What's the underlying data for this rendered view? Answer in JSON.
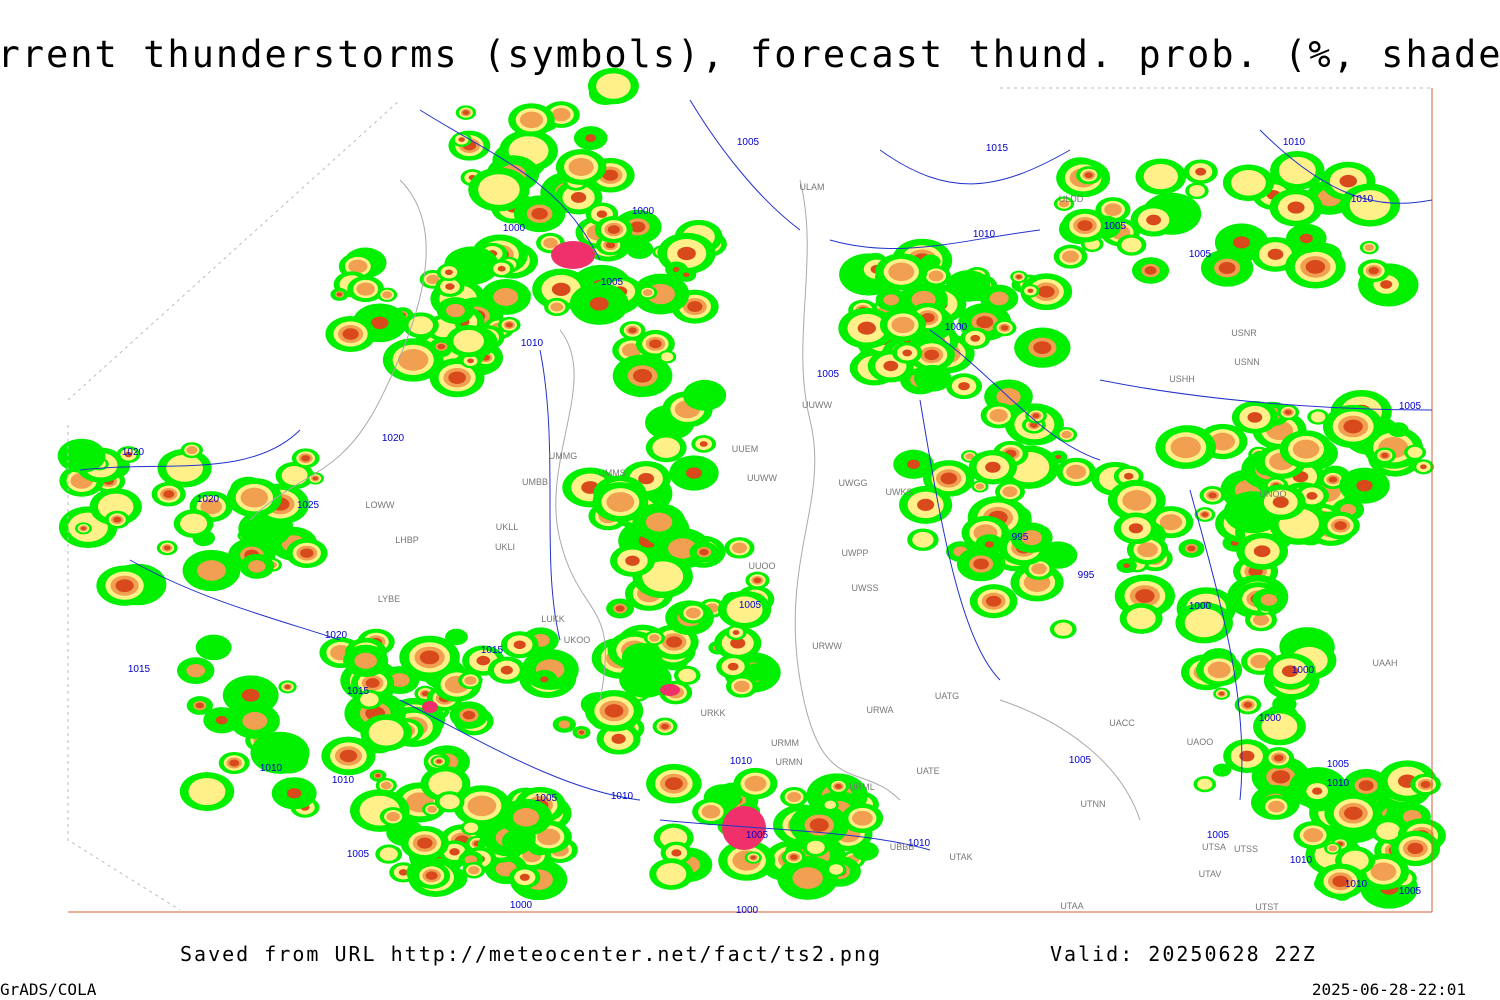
{
  "title": "Current thunderstorms (symbols), forecast thund. prob. (%, shaded)",
  "footer": {
    "source": "Saved from URL http://meteocenter.net/fact/ts2.png",
    "valid": "Valid: 20250628 22Z",
    "software": "GrADS/COLA",
    "timestamp": "2025-06-28-22:01"
  },
  "isobar_labels": [
    1005,
    1015,
    1000,
    1000,
    1010,
    1005,
    1005,
    1010,
    1000,
    1005,
    1020,
    1020,
    1020,
    1025,
    995,
    995,
    1005,
    1000,
    1020,
    1015,
    1015,
    1015,
    1000,
    1000,
    1010,
    1010,
    1010,
    1005,
    1010,
    1005,
    1005,
    1010,
    1010,
    1005,
    1005,
    1005,
    1010,
    1010,
    1005,
    1000,
    1000,
    1010,
    1010,
    1005,
    1005
  ],
  "station_labels": [
    "ULDD",
    "ULAM",
    "UUWW",
    "UWGG",
    "UWKS",
    "UWPP",
    "UWSS",
    "URWW",
    "URWA",
    "UATG",
    "UATE",
    "URML",
    "UBBB",
    "UTAK",
    "UTNN",
    "UAOO",
    "UACC",
    "USHH",
    "USNN",
    "USNR",
    "UNOO",
    "UUEM",
    "UUWW",
    "UMMS",
    "UMMG",
    "UMBB",
    "UKLL",
    "UKLI",
    "LHBP",
    "LOWW",
    "LYBE",
    "UUOO",
    "UKOO",
    "LUKK",
    "URMM",
    "URMN",
    "URKK",
    "UTAV",
    "UTAA",
    "UTST",
    "UTSA",
    "UTSS",
    "UAAH"
  ]
}
